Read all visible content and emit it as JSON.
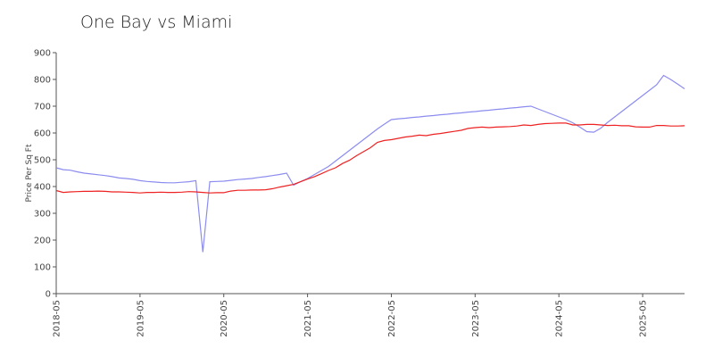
{
  "chart_data": {
    "type": "line",
    "title": "One Bay vs Miami",
    "y_label": "Price Per Sq Ft",
    "x": [
      "2018-05",
      "2018-06",
      "2018-07",
      "2018-08",
      "2018-09",
      "2018-10",
      "2018-11",
      "2018-12",
      "2019-01",
      "2019-02",
      "2019-03",
      "2019-04",
      "2019-05",
      "2019-06",
      "2019-07",
      "2019-08",
      "2019-09",
      "2019-10",
      "2019-11",
      "2019-12",
      "2020-01",
      "2020-02",
      "2020-03",
      "2020-04",
      "2020-05",
      "2020-06",
      "2020-07",
      "2020-08",
      "2020-09",
      "2020-10",
      "2020-11",
      "2020-12",
      "2021-01",
      "2021-02",
      "2021-03",
      "2021-04",
      "2021-05",
      "2021-06",
      "2021-07",
      "2021-08",
      "2021-09",
      "2021-10",
      "2021-11",
      "2021-12",
      "2022-01",
      "2022-02",
      "2022-03",
      "2022-04",
      "2022-05",
      "2022-06",
      "2022-07",
      "2022-08",
      "2022-09",
      "2022-10",
      "2022-11",
      "2022-12",
      "2023-01",
      "2023-02",
      "2023-03",
      "2023-04",
      "2023-05",
      "2023-06",
      "2023-07",
      "2023-08",
      "2023-09",
      "2023-10",
      "2023-11",
      "2023-12",
      "2024-01",
      "2024-02",
      "2024-03",
      "2024-04",
      "2024-05",
      "2024-06",
      "2024-07",
      "2024-08",
      "2024-09",
      "2024-10",
      "2024-11",
      "2024-12",
      "2025-01",
      "2025-02",
      "2025-03",
      "2025-04",
      "2025-05",
      "2025-06",
      "2025-07",
      "2025-08",
      "2025-09",
      "2025-10",
      "2025-11"
    ],
    "series": [
      {
        "color": "#8c8cf0",
        "values": [
          470,
          463,
          461,
          455,
          450,
          447,
          444,
          441,
          437,
          432,
          430,
          427,
          422,
          419,
          417,
          415,
          414,
          414,
          416,
          418,
          422,
          155,
          418,
          419,
          420,
          423,
          426,
          428,
          430,
          434,
          437,
          441,
          445,
          450,
          405,
          418,
          430,
          445,
          460,
          475,
          495,
          515,
          535,
          555,
          575,
          595,
          615,
          633,
          650,
          653,
          655,
          658,
          660,
          663,
          665,
          668,
          670,
          673,
          675,
          678,
          680,
          683,
          685,
          688,
          690,
          693,
          695,
          698,
          700,
          690,
          680,
          670,
          660,
          650,
          638,
          622,
          605,
          603,
          618,
          640,
          660,
          680,
          700,
          720,
          740,
          760,
          780,
          815,
          800,
          783,
          765
        ]
      },
      {
        "color": "#ee2222",
        "values": [
          385,
          378,
          380,
          381,
          382,
          382,
          383,
          382,
          380,
          380,
          379,
          378,
          376,
          378,
          378,
          379,
          378,
          378,
          379,
          381,
          380,
          378,
          376,
          377,
          377,
          383,
          386,
          386,
          387,
          387,
          388,
          392,
          398,
          403,
          408,
          418,
          428,
          437,
          448,
          460,
          470,
          486,
          498,
          515,
          530,
          545,
          565,
          572,
          575,
          580,
          585,
          588,
          592,
          590,
          595,
          598,
          602,
          606,
          610,
          617,
          620,
          622,
          620,
          622,
          623,
          624,
          626,
          630,
          628,
          632,
          635,
          636,
          637,
          637,
          630,
          630,
          632,
          632,
          630,
          628,
          629,
          627,
          627,
          623,
          622,
          622,
          628,
          628,
          626,
          626,
          627
        ]
      }
    ],
    "xlim": [
      "2018-05",
      "2025-11"
    ],
    "xticks": [
      "2018-05",
      "2019-05",
      "2020-05",
      "2021-05",
      "2022-05",
      "2023-05",
      "2024-05",
      "2025-05"
    ],
    "ylim": [
      0,
      900
    ],
    "yticks": [
      0,
      100,
      200,
      300,
      400,
      500,
      600,
      700,
      800,
      900
    ],
    "grid": false
  }
}
